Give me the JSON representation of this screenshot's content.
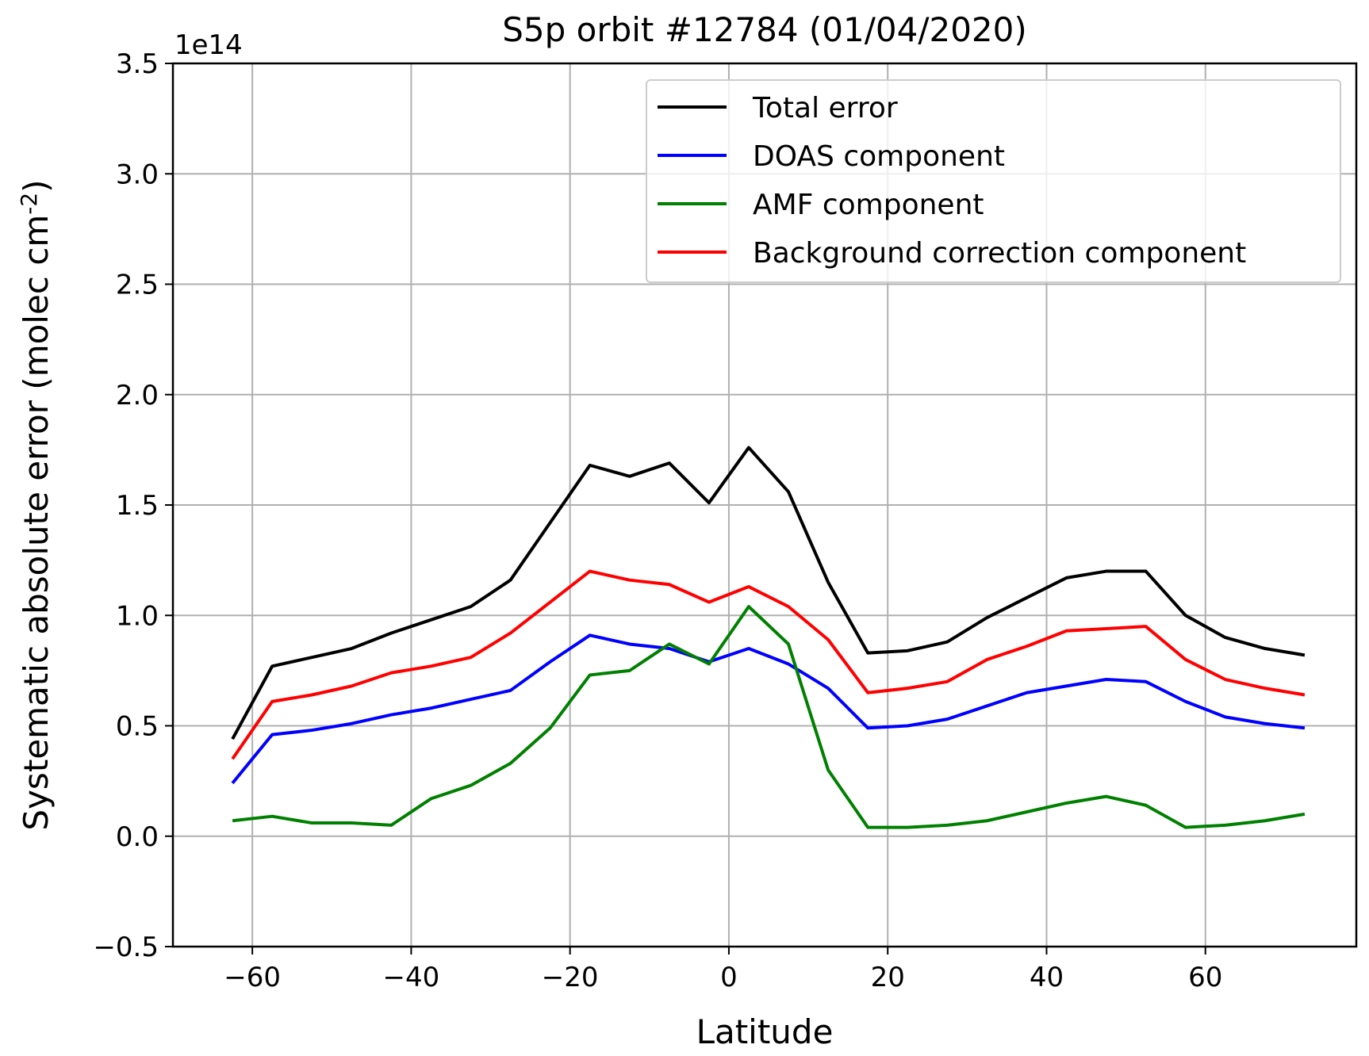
{
  "chart_data": {
    "type": "line",
    "title": "S5p orbit #12784 (01/04/2020)",
    "xlabel": "Latitude",
    "ylabel_main": "Systematic absolute error (molec cm",
    "ylabel_sup": "-2",
    "ylabel_end": ")",
    "y_offset_label": "1e14",
    "xlim": [
      -70,
      79
    ],
    "ylim": [
      -0.5,
      3.5
    ],
    "x_ticks": [
      -60,
      -40,
      -20,
      0,
      20,
      40,
      60
    ],
    "x_tick_labels": [
      "−60",
      "−40",
      "−20",
      "0",
      "20",
      "40",
      "60"
    ],
    "y_ticks": [
      -0.5,
      0.0,
      0.5,
      1.0,
      1.5,
      2.0,
      2.5,
      3.0,
      3.5
    ],
    "y_tick_labels": [
      "−0.5",
      "0.0",
      "0.5",
      "1.0",
      "1.5",
      "2.0",
      "2.5",
      "3.0",
      "3.5"
    ],
    "grid": true,
    "legend_position": "top-right",
    "x": [
      -62.5,
      -57.5,
      -52.5,
      -47.5,
      -42.5,
      -37.5,
      -32.5,
      -27.5,
      -22.5,
      -17.5,
      -12.5,
      -7.5,
      -2.5,
      2.5,
      7.5,
      12.5,
      17.5,
      22.5,
      27.5,
      32.5,
      37.5,
      42.5,
      47.5,
      52.5,
      57.5,
      62.5,
      67.5,
      72.5
    ],
    "series": [
      {
        "name": "Total error",
        "color": "#000000",
        "values": [
          0.44,
          0.77,
          0.81,
          0.85,
          0.92,
          0.98,
          1.04,
          1.16,
          1.42,
          1.68,
          1.63,
          1.69,
          1.51,
          1.76,
          1.56,
          1.15,
          0.83,
          0.84,
          0.88,
          0.99,
          1.08,
          1.17,
          1.2,
          1.2,
          1.0,
          0.9,
          0.85,
          0.82
        ]
      },
      {
        "name": "DOAS component",
        "color": "#0000ff",
        "values": [
          0.24,
          0.46,
          0.48,
          0.51,
          0.55,
          0.58,
          0.62,
          0.66,
          0.79,
          0.91,
          0.87,
          0.85,
          0.79,
          0.85,
          0.78,
          0.67,
          0.49,
          0.5,
          0.53,
          0.59,
          0.65,
          0.68,
          0.71,
          0.7,
          0.61,
          0.54,
          0.51,
          0.49
        ]
      },
      {
        "name": "AMF component",
        "color": "#008000",
        "values": [
          0.07,
          0.09,
          0.06,
          0.06,
          0.05,
          0.17,
          0.23,
          0.33,
          0.49,
          0.73,
          0.75,
          0.87,
          0.78,
          1.04,
          0.87,
          0.3,
          0.04,
          0.04,
          0.05,
          0.07,
          0.11,
          0.15,
          0.18,
          0.14,
          0.04,
          0.05,
          0.07,
          0.1
        ]
      },
      {
        "name": "Background correction component",
        "color": "#ff0000",
        "values": [
          0.35,
          0.61,
          0.64,
          0.68,
          0.74,
          0.77,
          0.81,
          0.92,
          1.06,
          1.2,
          1.16,
          1.14,
          1.06,
          1.13,
          1.04,
          0.89,
          0.65,
          0.67,
          0.7,
          0.8,
          0.86,
          0.93,
          0.94,
          0.95,
          0.8,
          0.71,
          0.67,
          0.64
        ]
      }
    ]
  }
}
